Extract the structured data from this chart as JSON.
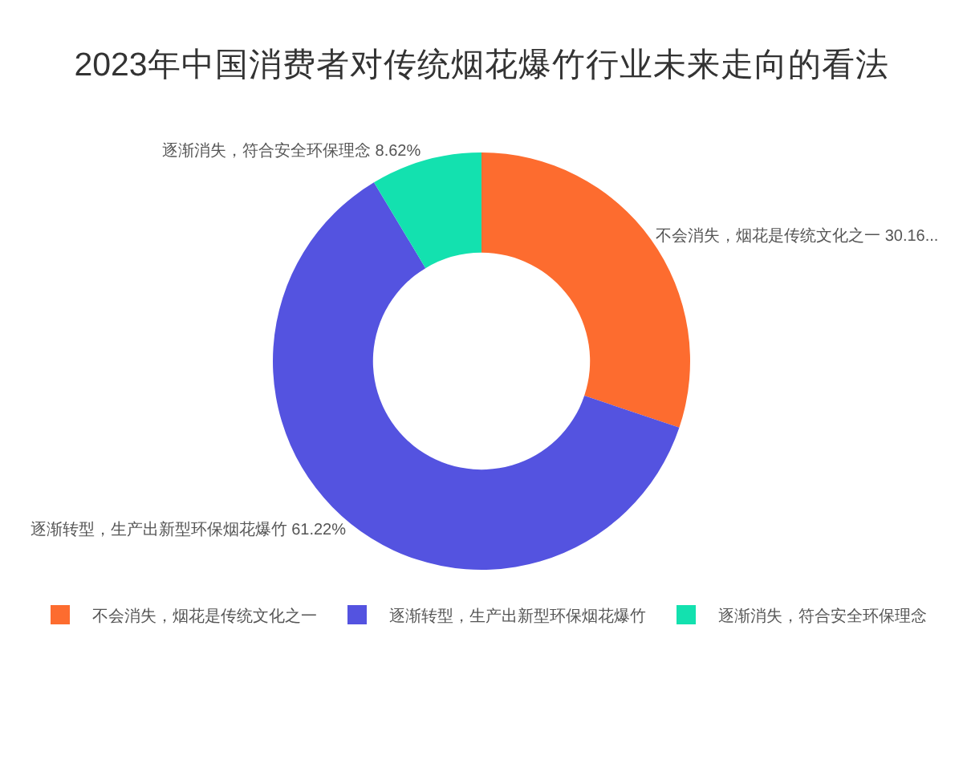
{
  "chart_data": {
    "type": "donut",
    "title": "2023年中国消费者对传统烟花爆竹行业未来走向的看法",
    "categories": [
      "不会消失，烟花是传统文化之一",
      "逐渐转型，生产出新型环保烟花爆竹",
      "逐渐消失，符合安全环保理念"
    ],
    "values": [
      30.16,
      61.22,
      8.62
    ],
    "colors": [
      "#fd6c2f",
      "#5453e0",
      "#13e1af"
    ],
    "value_labels": [
      "30.16...",
      "61.22%",
      "8.62%"
    ],
    "legend": "bottom"
  }
}
